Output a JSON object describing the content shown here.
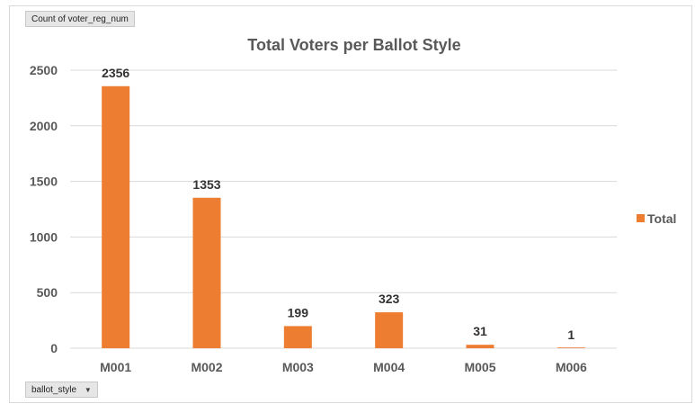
{
  "pivot": {
    "values_field_label": "Count of voter_reg_num",
    "axis_field_label": "ballot_style"
  },
  "icons": {
    "axis_field_dropdown": "dropdown-arrow-icon"
  },
  "colors": {
    "bar": "#ED7D31",
    "gridline": "#D9D9D9",
    "axis_text": "#595959"
  },
  "chart_data": {
    "type": "bar",
    "title": "Total Voters per Ballot Style",
    "xlabel": "",
    "ylabel": "",
    "categories": [
      "M001",
      "M002",
      "M003",
      "M004",
      "M005",
      "M006"
    ],
    "series": [
      {
        "name": "Total",
        "values": [
          2356,
          1353,
          199,
          323,
          31,
          1
        ]
      }
    ],
    "data_labels": [
      "2356",
      "1353",
      "199",
      "323",
      "31",
      "1"
    ],
    "y_ticks": [
      0,
      500,
      1000,
      1500,
      2000,
      2500
    ],
    "ylim": [
      0,
      2500
    ],
    "grid": true,
    "legend_position": "right"
  }
}
